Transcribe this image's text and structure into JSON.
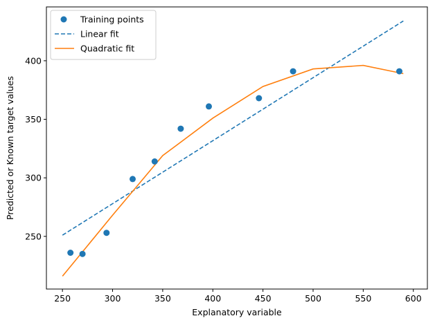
{
  "chart_data": {
    "type": "scatter",
    "title": "",
    "xlabel": "Explanatory variable",
    "ylabel": "Predicted or Known target values",
    "xlim": [
      234,
      614
    ],
    "ylim": [
      205,
      446
    ],
    "xticks": [
      250,
      300,
      350,
      400,
      450,
      500,
      550,
      600
    ],
    "yticks": [
      250,
      300,
      350,
      400
    ],
    "grid": false,
    "legend_position": "top-left",
    "series": [
      {
        "name": "Training points",
        "kind": "scatter",
        "color": "#1f77b4",
        "points": [
          {
            "x": 258,
            "y": 236
          },
          {
            "x": 270,
            "y": 235
          },
          {
            "x": 294,
            "y": 253
          },
          {
            "x": 320,
            "y": 299
          },
          {
            "x": 342,
            "y": 314
          },
          {
            "x": 368,
            "y": 342
          },
          {
            "x": 396,
            "y": 361
          },
          {
            "x": 446,
            "y": 368
          },
          {
            "x": 480,
            "y": 391
          },
          {
            "x": 586,
            "y": 391
          }
        ]
      },
      {
        "name": "Linear fit",
        "kind": "line",
        "style": "dashed",
        "color": "#1f77b4",
        "x": [
          250,
          590
        ],
        "y": [
          251,
          434
        ]
      },
      {
        "name": "Quadratic fit",
        "kind": "line",
        "style": "solid",
        "color": "#ff7f0e",
        "x": [
          250,
          300,
          350,
          400,
          450,
          500,
          550,
          590
        ],
        "y": [
          216,
          268,
          319,
          351,
          378,
          393,
          396,
          389
        ]
      }
    ]
  }
}
